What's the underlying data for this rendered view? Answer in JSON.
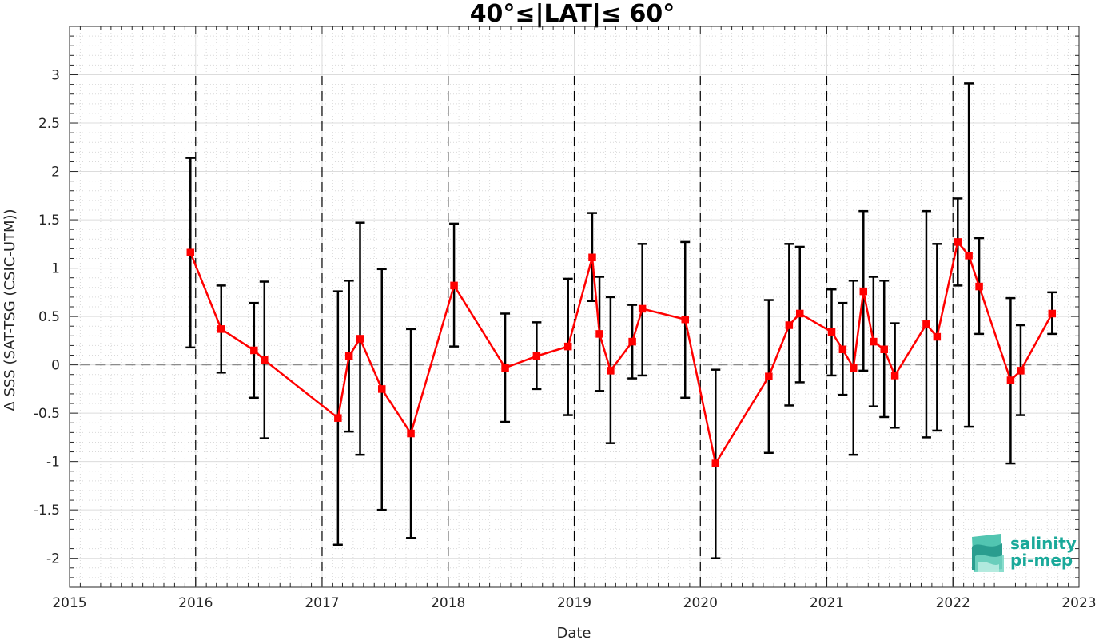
{
  "chart_data": {
    "type": "line",
    "title": "40°≤|LAT|≤ 60°",
    "xlabel": "Date",
    "ylabel": "Δ SSS (SAT-TSG (CSIC-UTM))",
    "xlim": [
      "2015-01-01",
      "2023-01-01"
    ],
    "ylim": [
      -2.3,
      3.5
    ],
    "x_tick_labels": [
      "2015",
      "2016",
      "2017",
      "2018",
      "2019",
      "2020",
      "2021",
      "2022",
      "2023"
    ],
    "y_ticks": [
      -2,
      -1.5,
      -1,
      -0.5,
      0,
      0.5,
      1,
      1.5,
      2,
      2.5,
      3
    ],
    "y_tick_labels": [
      "-2",
      "-1.5",
      "-1",
      "-0.5",
      "0",
      "0.5",
      "1",
      "1.5",
      "2",
      "2.5",
      "3"
    ],
    "grid": true,
    "zero_line": true,
    "year_boundaries": [
      "2016",
      "2017",
      "2018",
      "2019",
      "2020",
      "2021",
      "2022"
    ],
    "series": [
      {
        "color": "#ff0000",
        "marker": "square",
        "error_bar_color": "#000000",
        "x": [
          "2015-12-17",
          "2016-03-15",
          "2016-06-18",
          "2016-07-18",
          "2017-02-16",
          "2017-03-20",
          "2017-04-21",
          "2017-06-23",
          "2017-09-15",
          "2018-01-18",
          "2018-06-15",
          "2018-09-14",
          "2018-12-14",
          "2019-02-22",
          "2019-03-15",
          "2019-04-16",
          "2019-06-18",
          "2019-07-17",
          "2019-11-18",
          "2020-02-14",
          "2020-07-17",
          "2020-09-14",
          "2020-10-15",
          "2021-01-15",
          "2021-02-16",
          "2021-03-19",
          "2021-04-17",
          "2021-05-16",
          "2021-06-16",
          "2021-07-17",
          "2021-10-16",
          "2021-11-16",
          "2022-01-15",
          "2022-02-16",
          "2022-03-18",
          "2022-06-17",
          "2022-07-16",
          "2022-10-15"
        ],
        "y": [
          1.16,
          0.37,
          0.15,
          0.05,
          -0.55,
          0.09,
          0.27,
          -0.25,
          -0.71,
          0.82,
          -0.03,
          0.09,
          0.19,
          1.11,
          0.32,
          -0.06,
          0.24,
          0.58,
          0.47,
          -1.02,
          -0.12,
          0.41,
          0.53,
          0.34,
          0.16,
          -0.03,
          0.76,
          0.24,
          0.16,
          -0.11,
          0.42,
          0.29,
          1.27,
          1.13,
          0.81,
          -0.16,
          -0.06,
          0.53
        ],
        "err_low": [
          0.18,
          -0.08,
          -0.34,
          -0.76,
          -1.86,
          -0.69,
          -0.93,
          -1.5,
          -1.79,
          0.19,
          -0.59,
          -0.25,
          -0.52,
          0.66,
          -0.27,
          -0.81,
          -0.14,
          -0.11,
          -0.34,
          -2.0,
          -0.91,
          -0.42,
          -0.18,
          -0.11,
          -0.31,
          -0.93,
          -0.06,
          -0.43,
          -0.54,
          -0.65,
          -0.75,
          -0.68,
          0.82,
          -0.64,
          0.32,
          -1.02,
          -0.52,
          0.32
        ],
        "err_high": [
          2.14,
          0.82,
          0.64,
          0.86,
          0.76,
          0.87,
          1.47,
          0.99,
          0.37,
          1.46,
          0.53,
          0.44,
          0.89,
          1.57,
          0.91,
          0.7,
          0.62,
          1.25,
          1.27,
          -0.05,
          0.67,
          1.25,
          1.22,
          0.78,
          0.64,
          0.87,
          1.59,
          0.91,
          0.87,
          0.43,
          1.59,
          1.25,
          1.72,
          2.91,
          1.31,
          0.69,
          0.41,
          0.75
        ]
      }
    ]
  },
  "logo": {
    "line1": "salinity",
    "line2": "pi-mep",
    "color": "#1aa99a"
  }
}
